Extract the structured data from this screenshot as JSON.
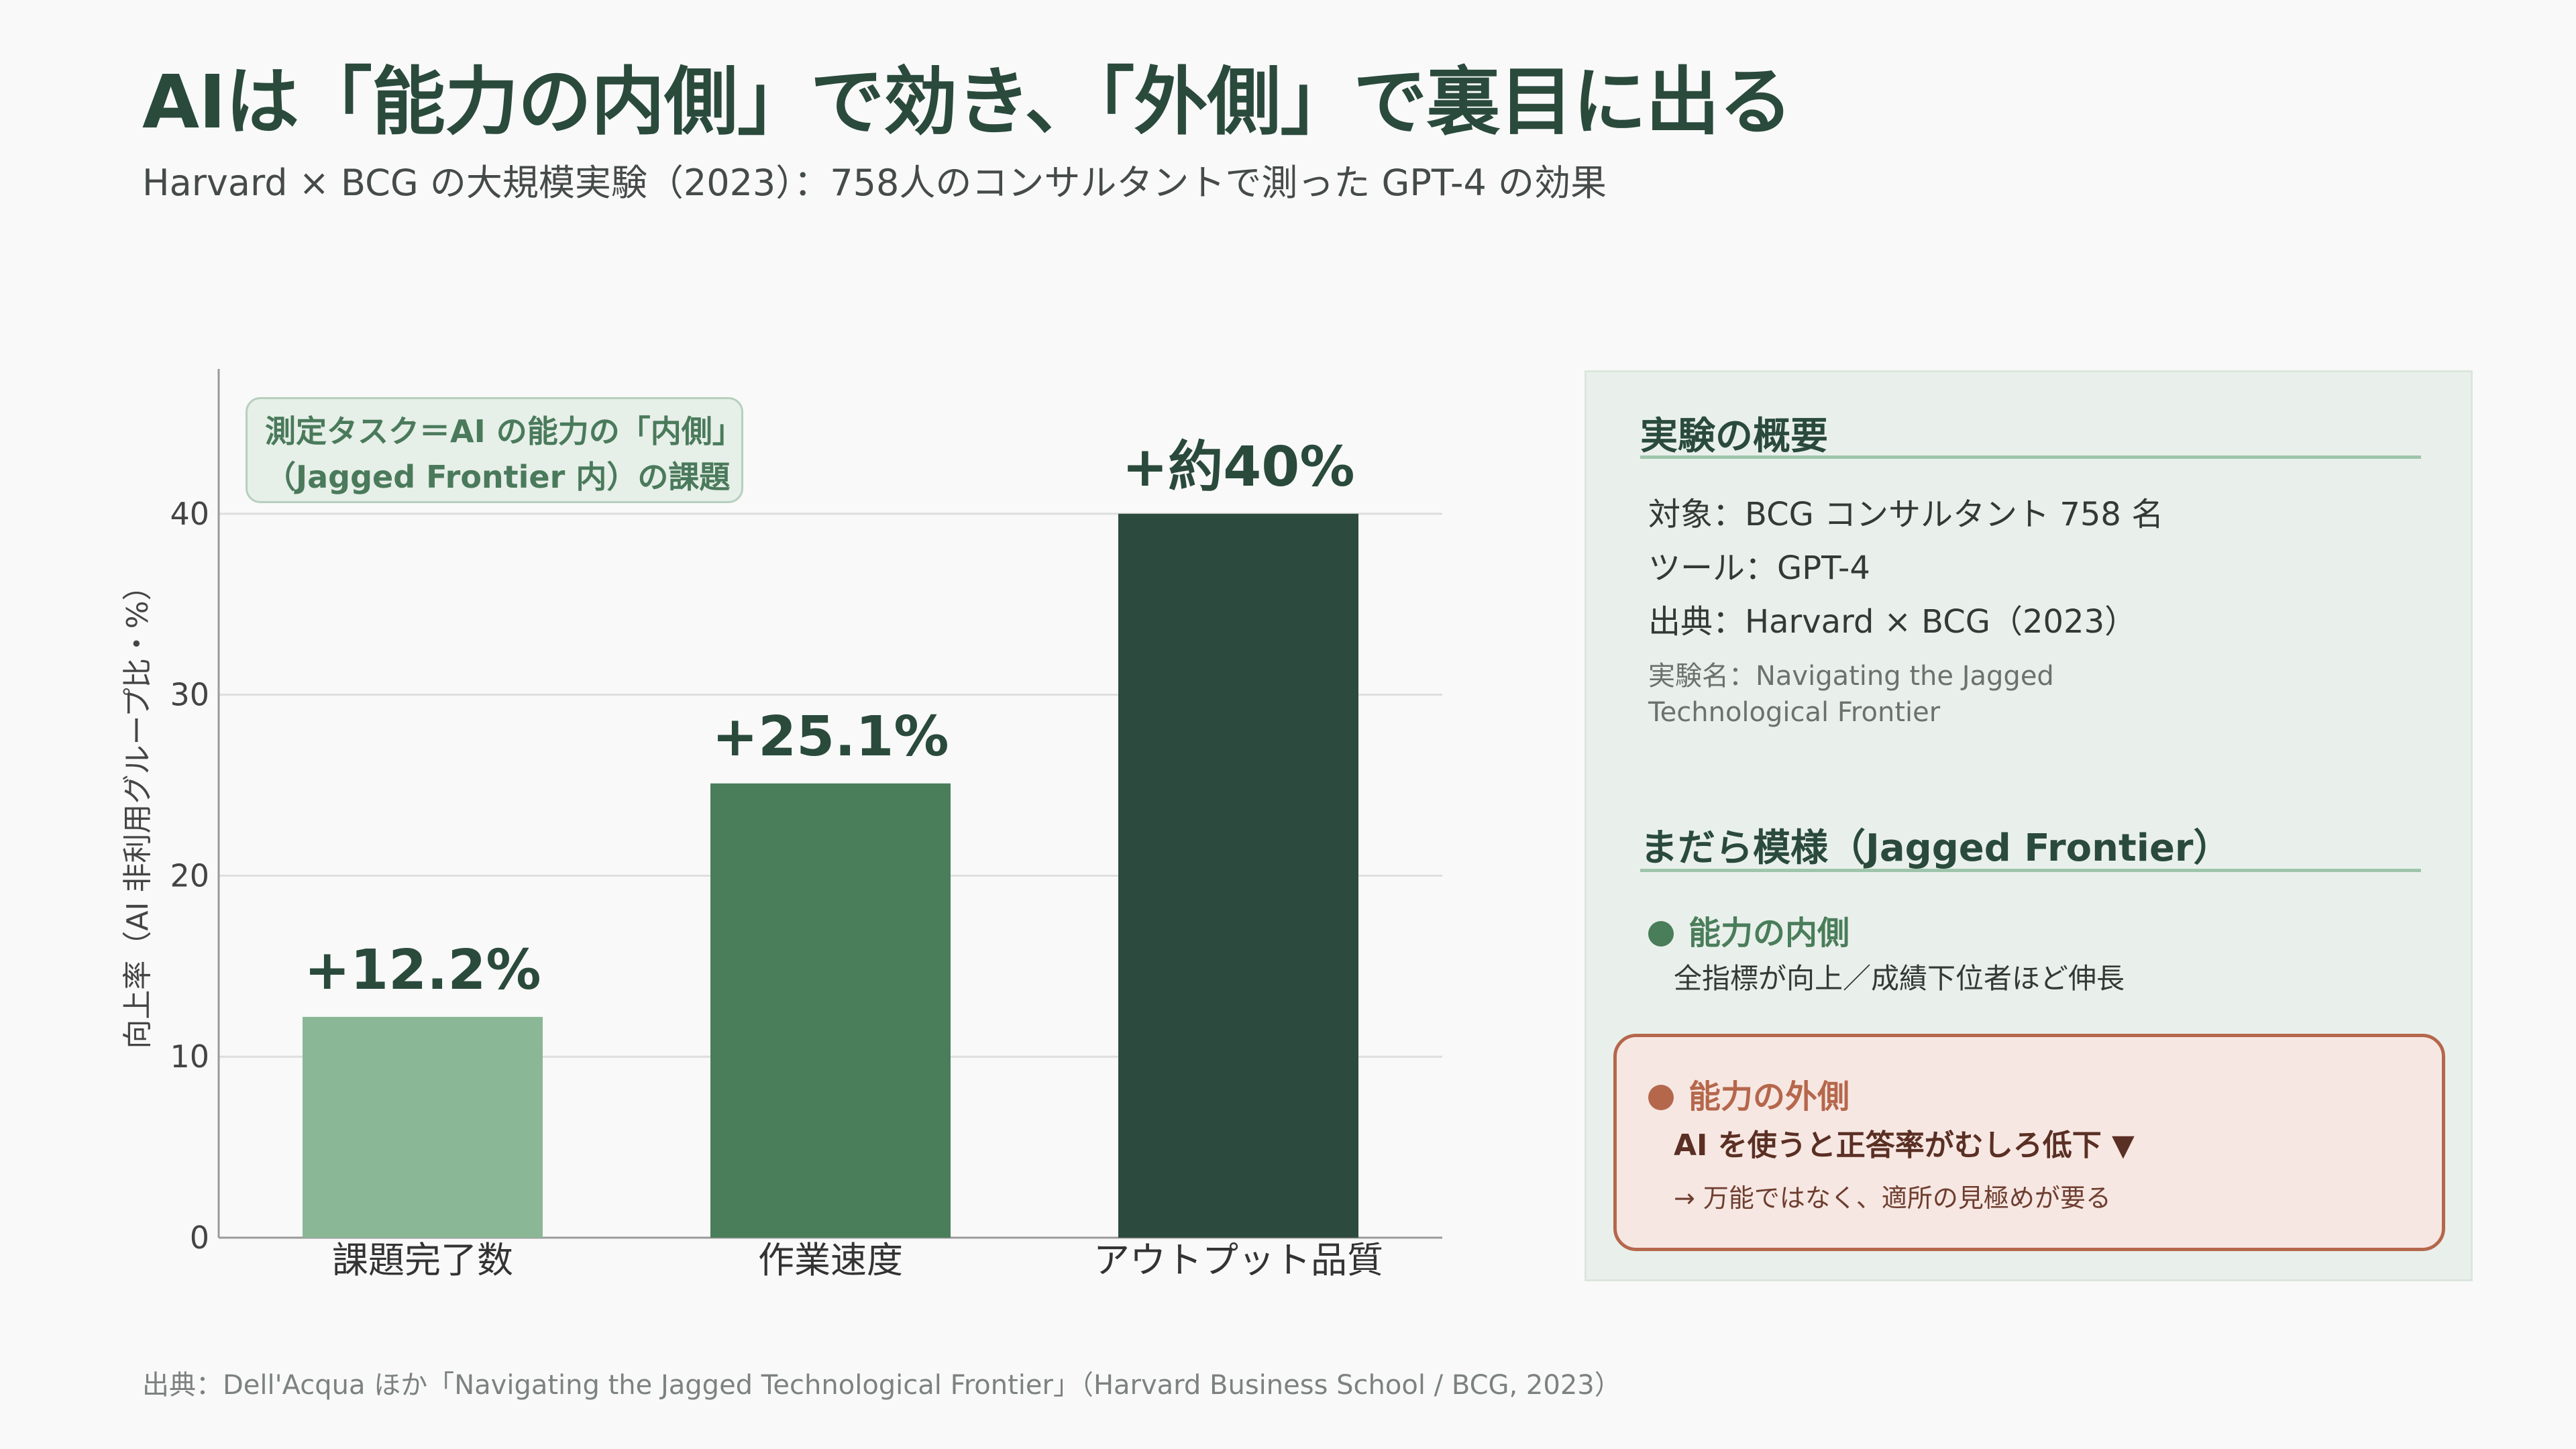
{
  "title": "AIは「能力の内側」で効き、「外側」で裏目に出る",
  "subtitle": "Harvard × BCG の大規模実験（2023）：758人のコンサルタントで測った GPT-4 の効果",
  "footer": "出典：Dell'Acqua ほか「Navigating the Jagged Technological Frontier」（Harvard Business School / BCG, 2023）",
  "task_box": {
    "line1": "測定タスク＝AI の能力の「内側」",
    "line2": "（Jagged Frontier 内）の課題"
  },
  "chart_data": {
    "type": "bar",
    "categories": [
      "課題完了数",
      "作業速度",
      "アウトプット品質"
    ],
    "values": [
      12.2,
      25.1,
      40
    ],
    "data_labels": [
      "+12.2%",
      "+25.1%",
      "+約40%"
    ],
    "bar_colors": [
      "#8ab795",
      "#4a7d5a",
      "#2d4a3e"
    ],
    "ylabel": "向上率（AI 非利用グループ比・%）",
    "ylim": [
      0,
      48
    ],
    "yticks": [
      0,
      10,
      20,
      30,
      40
    ],
    "grid": true
  },
  "panel": {
    "overview_heading": "実験の概要",
    "overview_lines": [
      "対象：BCG コンサルタント 758 名",
      "ツール：GPT-4",
      "出典：Harvard × BCG（2023）"
    ],
    "experiment_name_lines": [
      "実験名：Navigating the Jagged",
      "Technological Frontier"
    ],
    "jagged_heading": "まだら模様（Jagged Frontier）",
    "inside": {
      "title": "能力の内側",
      "desc": "全指標が向上／成績下位者ほど伸長",
      "color": "#4a7d5a"
    },
    "outside": {
      "title": "能力の外側",
      "desc": "AI を使うと正答率がむしろ低下 ▼",
      "note": "→ 万能ではなく、適所の見極めが要る",
      "color": "#b5674c"
    }
  }
}
